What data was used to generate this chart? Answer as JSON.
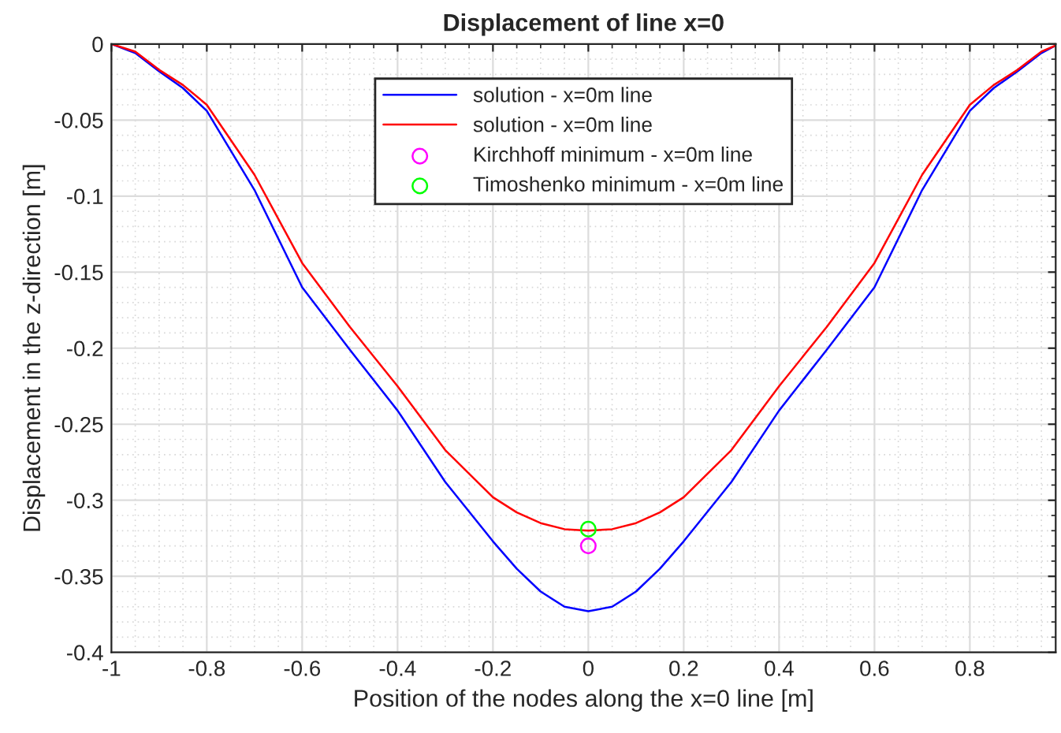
{
  "chart_data": {
    "type": "line",
    "title": "Displacement of line x=0",
    "xlabel": "Position of the nodes along the x=0 line [m]",
    "ylabel": "Displacement in the z-direction [m]",
    "xlim": [
      -1,
      0.98
    ],
    "ylim": [
      -0.4,
      0
    ],
    "xticks": [
      -1,
      -0.8,
      -0.6,
      -0.4,
      -0.2,
      0,
      0.2,
      0.4,
      0.6,
      0.8
    ],
    "yticks": [
      -0.4,
      -0.35,
      -0.3,
      -0.25,
      -0.2,
      -0.15,
      -0.1,
      -0.05,
      0
    ],
    "grid": true,
    "legend": "top",
    "line_style": "solid",
    "series": [
      {
        "name": "solution - x=0m line",
        "marker": "none",
        "color": "#0000ff",
        "x": [
          -1,
          -0.95,
          -0.9,
          -0.85,
          -0.8,
          -0.7,
          -0.6,
          -0.5,
          -0.4,
          -0.3,
          -0.2,
          -0.15,
          -0.1,
          -0.05,
          0,
          0.05,
          0.1,
          0.15,
          0.2,
          0.3,
          0.4,
          0.5,
          0.6,
          0.7,
          0.8,
          0.85,
          0.9,
          0.95,
          0.98
        ],
        "values": [
          0,
          -0.006,
          -0.018,
          -0.029,
          -0.044,
          -0.096,
          -0.16,
          -0.201,
          -0.241,
          -0.288,
          -0.327,
          -0.345,
          -0.36,
          -0.37,
          -0.373,
          -0.37,
          -0.36,
          -0.345,
          -0.327,
          -0.288,
          -0.241,
          -0.201,
          -0.16,
          -0.096,
          -0.044,
          -0.029,
          -0.018,
          -0.006,
          -0.001
        ]
      },
      {
        "name": "solution - x=0m line",
        "marker": "none",
        "color": "#ff0000",
        "x": [
          -1,
          -0.95,
          -0.9,
          -0.85,
          -0.8,
          -0.7,
          -0.6,
          -0.5,
          -0.4,
          -0.3,
          -0.2,
          -0.15,
          -0.1,
          -0.05,
          0,
          0.05,
          0.1,
          0.15,
          0.2,
          0.3,
          0.4,
          0.5,
          0.6,
          0.7,
          0.8,
          0.85,
          0.9,
          0.95,
          0.98
        ],
        "values": [
          0,
          -0.005,
          -0.017,
          -0.027,
          -0.04,
          -0.086,
          -0.144,
          -0.186,
          -0.225,
          -0.267,
          -0.298,
          -0.308,
          -0.315,
          -0.319,
          -0.32,
          -0.319,
          -0.315,
          -0.308,
          -0.298,
          -0.267,
          -0.225,
          -0.186,
          -0.144,
          -0.086,
          -0.04,
          -0.027,
          -0.017,
          -0.005,
          -0.001
        ]
      },
      {
        "name": "Kirchhoff minimum - x=0m line",
        "type": "scatter",
        "marker": "circle",
        "color": "#ff00ff",
        "x": [
          0
        ],
        "values": [
          -0.33
        ]
      },
      {
        "name": "Timoshenko minimum - x=0m line",
        "type": "scatter",
        "marker": "circle",
        "color": "#00ff00",
        "x": [
          0
        ],
        "values": [
          -0.319
        ]
      }
    ]
  }
}
